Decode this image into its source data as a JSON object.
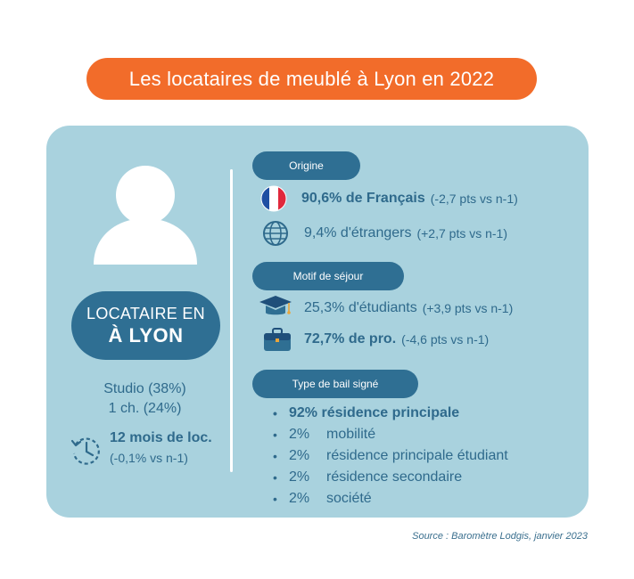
{
  "title": "Les locataires de meublé à Lyon en 2022",
  "colors": {
    "accent": "#f26c2a",
    "card": "#a9d2de",
    "pill": "#2f6f93",
    "text": "#2f6a8c"
  },
  "profile": {
    "pill_line1": "LOCATAIRE EN",
    "pill_line2": "À LYON",
    "studio": "Studio (38%)",
    "one_bedroom": "1 ch. (24%)",
    "duration": "12 mois de loc.",
    "duration_delta": "(-0,1% vs n-1)",
    "icons": [
      "person-silhouette-icon",
      "clock-history-icon"
    ]
  },
  "sections": {
    "origine": {
      "label": "Origine",
      "items": [
        {
          "icon": "france-flag-icon",
          "value": "90,6% de Français",
          "delta": "(-2,7 pts vs n-1)"
        },
        {
          "icon": "globe-icon",
          "value": "9,4% d'étrangers",
          "delta": "(+2,7 pts vs n-1)"
        }
      ]
    },
    "motif": {
      "label": "Motif de séjour",
      "items": [
        {
          "icon": "graduation-cap-icon",
          "value": "25,3% d'étudiants",
          "delta": "(+3,9 pts vs n-1)"
        },
        {
          "icon": "briefcase-icon",
          "value": "72,7% de pro.",
          "delta": "(-4,6 pts vs n-1)"
        }
      ]
    },
    "bail": {
      "label": "Type de bail signé",
      "first": "92% résidence principale",
      "items": [
        {
          "pct": "2%",
          "label": "mobilité"
        },
        {
          "pct": "2%",
          "label": "résidence principale étudiant"
        },
        {
          "pct": "2%",
          "label": "résidence secondaire"
        },
        {
          "pct": "2%",
          "label": "société"
        }
      ]
    }
  },
  "source": "Source : Baromètre Lodgis, janvier 2023"
}
